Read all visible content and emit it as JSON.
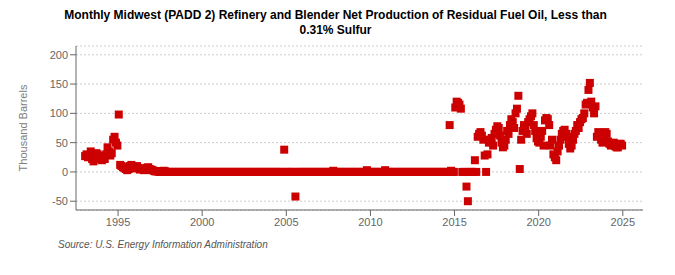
{
  "chart_data": {
    "type": "scatter",
    "title": "Monthly Midwest (PADD 2) Refinery and Blender Net Production of Residual Fuel Oil, Less than\n0.31% Sulfur",
    "y_label": "Thousand Barrels",
    "annotations": [
      "Source: U.S. Energy Information Administration"
    ],
    "color": "#cc0000",
    "marker": "square",
    "grid": true,
    "xlim": [
      1992.5,
      2026.2
    ],
    "xticks": [
      1995,
      2000,
      2005,
      2010,
      2015,
      2020,
      2025
    ],
    "ylim": [
      -65,
      215
    ],
    "yticks": [
      -50,
      0,
      50,
      100,
      150,
      200
    ],
    "x": [
      1993.041667,
      1993.125,
      1993.208333,
      1993.291667,
      1993.375,
      1993.458333,
      1993.541667,
      1993.625,
      1993.708333,
      1993.791667,
      1993.875,
      1993.958333,
      1994.041667,
      1994.125,
      1994.208333,
      1994.291667,
      1994.375,
      1994.458333,
      1994.541667,
      1994.625,
      1994.708333,
      1994.791667,
      1994.875,
      1994.958333,
      1995.041667,
      1995.125,
      1995.208333,
      1995.291667,
      1995.375,
      1995.458333,
      1995.541667,
      1995.625,
      1995.708333,
      1995.791667,
      1995.875,
      1995.958333,
      1996.041667,
      1996.125,
      1996.208333,
      1996.291667,
      1996.375,
      1996.458333,
      1996.541667,
      1996.625,
      1996.708333,
      1996.791667,
      1996.875,
      1996.958333,
      1997.041667,
      1997.125,
      1997.208333,
      1997.291667,
      1997.375,
      1997.458333,
      1997.541667,
      1997.625,
      1997.708333,
      1997.791667,
      1997.875,
      1997.958333,
      1998.041667,
      1998.125,
      1998.208333,
      1998.291667,
      1998.375,
      1998.458333,
      1998.541667,
      1998.625,
      1998.708333,
      1998.791667,
      1998.875,
      1998.958333,
      1999.041667,
      1999.125,
      1999.208333,
      1999.291667,
      1999.375,
      1999.458333,
      1999.541667,
      1999.625,
      1999.708333,
      1999.791667,
      1999.875,
      1999.958333,
      2000.041667,
      2000.125,
      2000.208333,
      2000.291667,
      2000.375,
      2000.458333,
      2000.541667,
      2000.625,
      2000.708333,
      2000.791667,
      2000.875,
      2000.958333,
      2001.041667,
      2001.125,
      2001.208333,
      2001.291667,
      2001.375,
      2001.458333,
      2001.541667,
      2001.625,
      2001.708333,
      2001.791667,
      2001.875,
      2001.958333,
      2002.041667,
      2002.125,
      2002.208333,
      2002.291667,
      2002.375,
      2002.458333,
      2002.541667,
      2002.625,
      2002.708333,
      2002.791667,
      2002.875,
      2002.958333,
      2003.041667,
      2003.125,
      2003.208333,
      2003.291667,
      2003.375,
      2003.458333,
      2003.541667,
      2003.625,
      2003.708333,
      2003.791667,
      2003.875,
      2003.958333,
      2004.041667,
      2004.125,
      2004.208333,
      2004.291667,
      2004.375,
      2004.458333,
      2004.541667,
      2004.625,
      2004.708333,
      2004.791667,
      2004.875,
      2004.958333,
      2005.041667,
      2005.125,
      2005.208333,
      2005.291667,
      2005.375,
      2005.458333,
      2005.541667,
      2005.625,
      2005.708333,
      2005.791667,
      2005.875,
      2005.958333,
      2006.041667,
      2006.125,
      2006.208333,
      2006.291667,
      2006.375,
      2006.458333,
      2006.541667,
      2006.625,
      2006.708333,
      2006.791667,
      2006.875,
      2006.958333,
      2007.041667,
      2007.125,
      2007.208333,
      2007.291667,
      2007.375,
      2007.458333,
      2007.541667,
      2007.625,
      2007.708333,
      2007.791667,
      2007.875,
      2007.958333,
      2008.041667,
      2008.125,
      2008.208333,
      2008.291667,
      2008.375,
      2008.458333,
      2008.541667,
      2008.625,
      2008.708333,
      2008.791667,
      2008.875,
      2008.958333,
      2009.041667,
      2009.125,
      2009.208333,
      2009.291667,
      2009.375,
      2009.458333,
      2009.541667,
      2009.625,
      2009.708333,
      2009.791667,
      2009.875,
      2009.958333,
      2010.041667,
      2010.125,
      2010.208333,
      2010.291667,
      2010.375,
      2010.458333,
      2010.541667,
      2010.625,
      2010.708333,
      2010.791667,
      2010.875,
      2010.958333,
      2011.041667,
      2011.125,
      2011.208333,
      2011.291667,
      2011.375,
      2011.458333,
      2011.541667,
      2011.625,
      2011.708333,
      2011.791667,
      2011.875,
      2011.958333,
      2012.041667,
      2012.125,
      2012.208333,
      2012.291667,
      2012.375,
      2012.458333,
      2012.541667,
      2012.625,
      2012.708333,
      2012.791667,
      2012.875,
      2012.958333,
      2013.041667,
      2013.125,
      2013.208333,
      2013.291667,
      2013.375,
      2013.458333,
      2013.541667,
      2013.625,
      2013.708333,
      2013.791667,
      2013.875,
      2013.958333,
      2014.041667,
      2014.125,
      2014.208333,
      2014.291667,
      2014.375,
      2014.458333,
      2014.541667,
      2014.625,
      2014.708333,
      2014.791667,
      2014.875,
      2014.958333,
      2015.041667,
      2015.125,
      2015.208333,
      2015.291667,
      2015.375,
      2015.458333,
      2015.541667,
      2015.625,
      2015.708333,
      2015.791667,
      2015.875,
      2015.958333,
      2016.041667,
      2016.125,
      2016.208333,
      2016.291667,
      2016.375,
      2016.458333,
      2016.541667,
      2016.625,
      2016.708333,
      2016.791667,
      2016.875,
      2016.958333,
      2017.041667,
      2017.125,
      2017.208333,
      2017.291667,
      2017.375,
      2017.458333,
      2017.541667,
      2017.625,
      2017.708333,
      2017.791667,
      2017.875,
      2017.958333,
      2018.041667,
      2018.125,
      2018.208333,
      2018.291667,
      2018.375,
      2018.458333,
      2018.541667,
      2018.625,
      2018.708333,
      2018.791667,
      2018.875,
      2018.958333,
      2019.041667,
      2019.125,
      2019.208333,
      2019.291667,
      2019.375,
      2019.458333,
      2019.541667,
      2019.625,
      2019.708333,
      2019.791667,
      2019.875,
      2019.958333,
      2020.041667,
      2020.125,
      2020.208333,
      2020.291667,
      2020.375,
      2020.458333,
      2020.541667,
      2020.625,
      2020.708333,
      2020.791667,
      2020.875,
      2020.958333,
      2021.041667,
      2021.125,
      2021.208333,
      2021.291667,
      2021.375,
      2021.458333,
      2021.541667,
      2021.625,
      2021.708333,
      2021.791667,
      2021.875,
      2021.958333,
      2022.041667,
      2022.125,
      2022.208333,
      2022.291667,
      2022.375,
      2022.458333,
      2022.541667,
      2022.625,
      2022.708333,
      2022.791667,
      2022.875,
      2022.958333,
      2023.041667,
      2023.125,
      2023.208333,
      2023.291667,
      2023.375,
      2023.458333,
      2023.541667,
      2023.625,
      2023.708333,
      2023.791667,
      2023.875,
      2023.958333,
      2024.041667,
      2024.125,
      2024.208333,
      2024.291667,
      2024.375,
      2024.458333,
      2024.541667,
      2024.625,
      2024.708333,
      2024.791667,
      2024.875,
      2024.958333
    ],
    "values": [
      27,
      30,
      25,
      28,
      35,
      22,
      18,
      25,
      32,
      30,
      27,
      22,
      20,
      25,
      22,
      30,
      42,
      35,
      28,
      32,
      55,
      60,
      50,
      45,
      98,
      12,
      10,
      8,
      7,
      5,
      3,
      5,
      10,
      12,
      8,
      6,
      8,
      10,
      7,
      4,
      6,
      5,
      3,
      4,
      7,
      8,
      5,
      4,
      3,
      2,
      1,
      1,
      1,
      0,
      0,
      1,
      2,
      1,
      0,
      0,
      0,
      0,
      0,
      0,
      0,
      0,
      0,
      0,
      0,
      0,
      0,
      0,
      0,
      0,
      0,
      0,
      0,
      0,
      0,
      0,
      0,
      0,
      0,
      0,
      0,
      0,
      0,
      0,
      0,
      0,
      0,
      0,
      0,
      0,
      0,
      0,
      0,
      0,
      0,
      0,
      0,
      0,
      0,
      0,
      0,
      0,
      0,
      0,
      0,
      0,
      0,
      0,
      0,
      0,
      0,
      0,
      0,
      0,
      0,
      0,
      0,
      0,
      0,
      0,
      0,
      0,
      0,
      0,
      0,
      0,
      0,
      0,
      0,
      0,
      0,
      0,
      0,
      0,
      0,
      0,
      0,
      0,
      38,
      0,
      0,
      0,
      0,
      0,
      0,
      0,
      -42,
      0,
      0,
      0,
      0,
      0,
      0,
      0,
      0,
      0,
      0,
      0,
      0,
      0,
      0,
      0,
      0,
      0,
      0,
      0,
      0,
      0,
      0,
      0,
      0,
      0,
      0,
      2,
      0,
      0,
      0,
      0,
      0,
      0,
      0,
      0,
      0,
      0,
      0,
      0,
      0,
      0,
      0,
      0,
      0,
      0,
      0,
      0,
      0,
      0,
      0,
      3,
      0,
      0,
      0,
      0,
      0,
      0,
      0,
      0,
      0,
      0,
      0,
      0,
      3,
      0,
      0,
      0,
      0,
      0,
      0,
      0,
      0,
      0,
      0,
      0,
      0,
      0,
      0,
      0,
      0,
      0,
      0,
      0,
      0,
      0,
      0,
      0,
      0,
      0,
      0,
      0,
      0,
      0,
      0,
      0,
      0,
      0,
      0,
      0,
      0,
      0,
      0,
      0,
      0,
      0,
      0,
      0,
      0,
      0,
      80,
      2,
      0,
      0,
      110,
      120,
      118,
      115,
      108,
      0,
      0,
      0,
      -25,
      -50,
      0,
      0,
      0,
      0,
      20,
      0,
      60,
      65,
      68,
      62,
      55,
      28,
      0,
      30,
      50,
      55,
      58,
      45,
      65,
      72,
      78,
      75,
      62,
      50,
      42,
      45,
      55,
      70,
      65,
      80,
      90,
      85,
      75,
      100,
      108,
      130,
      5,
      55,
      70,
      80,
      75,
      65,
      85,
      90,
      95,
      100,
      80,
      70,
      58,
      52,
      50,
      60,
      70,
      45,
      88,
      92,
      90,
      80,
      45,
      55,
      30,
      25,
      20,
      35,
      45,
      55,
      65,
      70,
      72,
      65,
      60,
      48,
      40,
      45,
      55,
      65,
      70,
      80,
      75,
      85,
      90,
      92,
      100,
      115,
      118,
      140,
      152,
      120,
      110,
      100,
      112,
      60,
      68,
      65,
      55,
      50,
      58,
      68,
      65,
      52,
      48,
      45,
      48,
      50,
      44,
      42,
      42,
      48,
      48,
      45
    ]
  }
}
